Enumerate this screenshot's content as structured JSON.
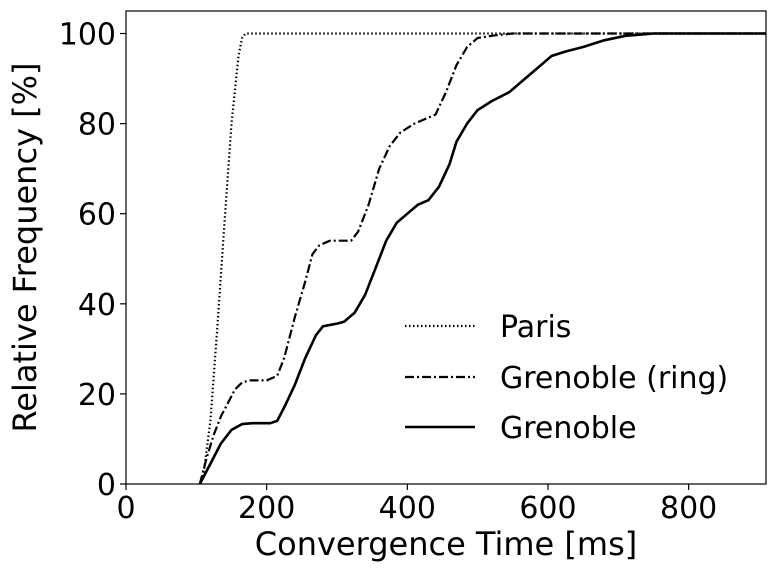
{
  "chart_data": {
    "type": "line",
    "title": "",
    "xlabel": "Convergence Time [ms]",
    "ylabel": "Relative Frequency [%]",
    "xlim": [
      0,
      910
    ],
    "ylim": [
      0,
      105
    ],
    "xticks": [
      0,
      200,
      400,
      600,
      800
    ],
    "yticks": [
      0,
      20,
      40,
      60,
      80,
      100
    ],
    "grid": false,
    "legend_position": "lower-right",
    "series": [
      {
        "name": "Paris",
        "style": "dotted",
        "color": "#000000",
        "points": [
          [
            105,
            0
          ],
          [
            110,
            2
          ],
          [
            120,
            14
          ],
          [
            130,
            35
          ],
          [
            140,
            58
          ],
          [
            150,
            80
          ],
          [
            160,
            95
          ],
          [
            165,
            99
          ],
          [
            170,
            100
          ],
          [
            910,
            100
          ]
        ]
      },
      {
        "name": "Grenoble (ring)",
        "style": "dashdot",
        "color": "#000000",
        "points": [
          [
            105,
            0
          ],
          [
            115,
            6
          ],
          [
            125,
            11
          ],
          [
            135,
            15
          ],
          [
            145,
            18
          ],
          [
            155,
            21
          ],
          [
            165,
            22.5
          ],
          [
            175,
            23
          ],
          [
            200,
            23
          ],
          [
            215,
            24
          ],
          [
            225,
            28
          ],
          [
            240,
            37
          ],
          [
            255,
            45
          ],
          [
            265,
            51
          ],
          [
            275,
            53
          ],
          [
            290,
            54
          ],
          [
            320,
            54
          ],
          [
            330,
            56
          ],
          [
            345,
            62
          ],
          [
            360,
            70
          ],
          [
            375,
            75
          ],
          [
            390,
            78
          ],
          [
            410,
            80
          ],
          [
            440,
            82
          ],
          [
            455,
            87
          ],
          [
            470,
            93
          ],
          [
            485,
            97
          ],
          [
            500,
            99
          ],
          [
            525,
            99.6
          ],
          [
            550,
            100
          ],
          [
            910,
            100
          ]
        ]
      },
      {
        "name": "Grenoble",
        "style": "solid",
        "color": "#000000",
        "points": [
          [
            105,
            0
          ],
          [
            115,
            3
          ],
          [
            125,
            6
          ],
          [
            135,
            9
          ],
          [
            150,
            12
          ],
          [
            165,
            13.3
          ],
          [
            180,
            13.5
          ],
          [
            205,
            13.5
          ],
          [
            215,
            14
          ],
          [
            225,
            17
          ],
          [
            240,
            22
          ],
          [
            255,
            28
          ],
          [
            270,
            33
          ],
          [
            280,
            35
          ],
          [
            300,
            35.6
          ],
          [
            310,
            36
          ],
          [
            325,
            38
          ],
          [
            340,
            42
          ],
          [
            355,
            48
          ],
          [
            370,
            54
          ],
          [
            385,
            58
          ],
          [
            400,
            60
          ],
          [
            415,
            62
          ],
          [
            430,
            63
          ],
          [
            445,
            66
          ],
          [
            460,
            71
          ],
          [
            470,
            76
          ],
          [
            485,
            80
          ],
          [
            500,
            83
          ],
          [
            520,
            85
          ],
          [
            545,
            87
          ],
          [
            560,
            89
          ],
          [
            575,
            91
          ],
          [
            590,
            93
          ],
          [
            605,
            95
          ],
          [
            625,
            96
          ],
          [
            650,
            97
          ],
          [
            680,
            98.5
          ],
          [
            710,
            99.5
          ],
          [
            750,
            100
          ],
          [
            910,
            100
          ]
        ]
      }
    ]
  }
}
